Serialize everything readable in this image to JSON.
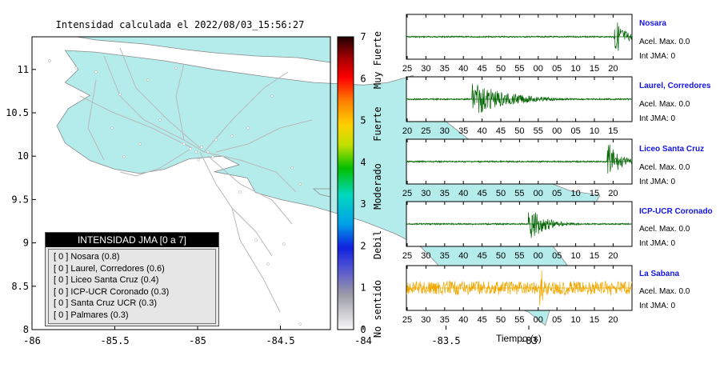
{
  "map": {
    "title": "Intensidad calculada el 2022/08/03_15:56:27",
    "x_ticks": [
      "-86",
      "-85.5",
      "-85",
      "-84.5",
      "-84",
      "-83.5",
      "-83"
    ],
    "y_ticks": [
      "11",
      "10.5",
      "10",
      "9.5",
      "9",
      "8.5",
      "8"
    ],
    "land_color": "#b4ecec",
    "sea_color": "#ffffff",
    "road_color": "#b8b8b8"
  },
  "colorbar": {
    "ticks": [
      "0",
      "1",
      "2",
      "3",
      "4",
      "5",
      "6",
      "7"
    ],
    "labels": [
      "No sentido",
      "Debil",
      "Moderado",
      "Fuerte",
      "Muy Fuerte"
    ]
  },
  "legend": {
    "title": "INTENSIDAD JMA [0 a 7]",
    "rows": [
      {
        "code": "[ 0 ]",
        "text": "Nosara (0.8)"
      },
      {
        "code": "[ 0 ]",
        "text": "Laurel, Corredores (0.6)"
      },
      {
        "code": "[ 0 ]",
        "text": "Liceo Santa Cruz (0.4)"
      },
      {
        "code": "[ 0 ]",
        "text": "ICP-UCR Coronado (0.3)"
      },
      {
        "code": "[ 0 ]",
        "text": "Santa Cruz UCR (0.3)"
      },
      {
        "code": "[ 0 ]",
        "text": "Palmares (0.3)"
      }
    ]
  },
  "chart_data": {
    "type": "line",
    "xlabel": "Tiempo (s)",
    "panels": [
      {
        "name": "Nosara",
        "accel": "Acel. Max. 0.0",
        "jma": "Int JMA: 0",
        "ticks": [
          "25",
          "30",
          "35",
          "40",
          "45",
          "50",
          "55",
          "00",
          "05",
          "10",
          "15",
          "20"
        ],
        "color": "#006400",
        "bursts": [
          {
            "at": 0.93,
            "amp": 0.9,
            "len": 0.08
          }
        ]
      },
      {
        "name": "Laurel, Corredores",
        "accel": "Acel. Max. 0.0",
        "jma": "Int JMA: 0",
        "ticks": [
          "20",
          "25",
          "30",
          "35",
          "40",
          "45",
          "50",
          "55",
          "00",
          "05",
          "10",
          "15"
        ],
        "color": "#006400",
        "bursts": [
          {
            "at": 0.3,
            "amp": 0.85,
            "len": 0.3
          }
        ]
      },
      {
        "name": "Liceo Santa Cruz",
        "accel": "Acel. Max. 0.0",
        "jma": "Int JMA: 0",
        "ticks": [
          "25",
          "30",
          "35",
          "40",
          "45",
          "50",
          "55",
          "00",
          "05",
          "10",
          "15",
          "20"
        ],
        "color": "#006400",
        "bursts": [
          {
            "at": 0.9,
            "amp": 0.9,
            "len": 0.1
          }
        ]
      },
      {
        "name": "ICP-UCR Coronado",
        "accel": "Acel. Max. 0.0",
        "jma": "Int JMA: 0",
        "ticks": [
          "25",
          "30",
          "35",
          "40",
          "45",
          "50",
          "55",
          "00",
          "05",
          "10",
          "15",
          "20"
        ],
        "color": "#006400",
        "bursts": [
          {
            "at": 0.55,
            "amp": 0.8,
            "len": 0.15
          }
        ]
      },
      {
        "name": "La Sabana",
        "accel": "Acel. Max. 0.0",
        "jma": "Int JMA: 0",
        "ticks": [
          "25",
          "30",
          "35",
          "40",
          "45",
          "50",
          "55",
          "00",
          "05",
          "10",
          "15",
          "20"
        ],
        "color": "#f0a800",
        "bursts": [
          {
            "at": 0.6,
            "amp": 0.95,
            "len": 0.05
          }
        ]
      }
    ]
  }
}
